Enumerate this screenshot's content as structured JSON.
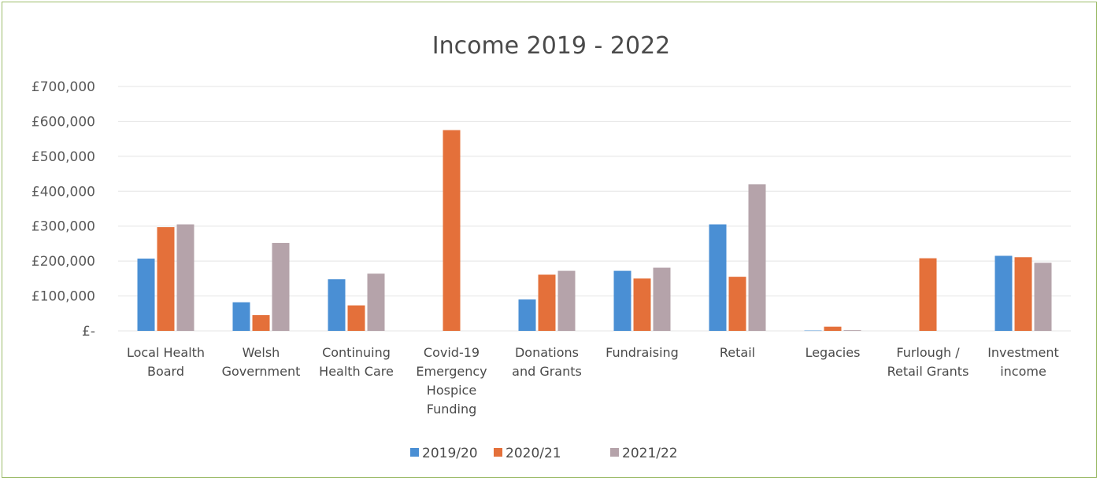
{
  "chart_data": {
    "type": "bar",
    "title": "Income 2019 - 2022",
    "xlabel": "",
    "ylabel": "",
    "ylim": [
      0,
      700000
    ],
    "yticks": [
      0,
      100000,
      200000,
      300000,
      400000,
      500000,
      600000,
      700000
    ],
    "ytick_labels": [
      "£-",
      "£100,000",
      "£200,000",
      "£300,000",
      "£400,000",
      "£500,000",
      "£600,000",
      "£700,000"
    ],
    "grid": true,
    "legend_position": "bottom",
    "categories": [
      [
        "Local Health",
        "Board"
      ],
      [
        "Welsh",
        "Government"
      ],
      [
        "Continuing",
        "Health Care"
      ],
      [
        "Covid-19",
        "Emergency",
        "Hospice",
        "Funding"
      ],
      [
        "Donations",
        "and Grants"
      ],
      [
        "Fundraising"
      ],
      [
        "Retail"
      ],
      [
        "Legacies"
      ],
      [
        "Furlough /",
        "Retail Grants"
      ],
      [
        "Investment",
        "income"
      ]
    ],
    "series": [
      {
        "name": "2019/20",
        "color": "#4a8fd4",
        "values": [
          207000,
          82000,
          148000,
          0,
          90000,
          172000,
          305000,
          1000,
          0,
          215000
        ]
      },
      {
        "name": "2020/21",
        "color": "#e4703a",
        "values": [
          297000,
          45000,
          73000,
          575000,
          161000,
          150000,
          155000,
          12000,
          208000,
          211000
        ]
      },
      {
        "name": "2021/22",
        "color": "#b5a3aa",
        "values": [
          305000,
          252000,
          164000,
          0,
          172000,
          181000,
          420000,
          2000,
          0,
          195000
        ]
      }
    ]
  }
}
